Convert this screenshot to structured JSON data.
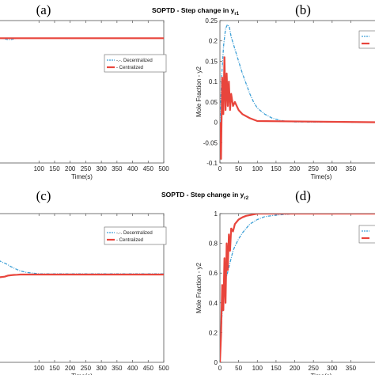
{
  "figure": {
    "title_top": "SOPTD - Step change in y",
    "title_top_sub": "r1",
    "title_bottom": "SOPTD - Step change in y",
    "title_bottom_sub": "r2",
    "letters": [
      "(a)",
      "(b)",
      "(c)",
      "(d)"
    ]
  },
  "colors": {
    "decentralized": "#3d9fd6",
    "centralized": "#e8453c"
  },
  "chart_data": [
    {
      "id": "a",
      "type": "line",
      "xlabel": "Time(s)",
      "ylabel": "",
      "xlim": [
        -30,
        500
      ],
      "ylim": [
        0,
        1.05
      ],
      "grid": false,
      "legend": "top-right",
      "xticks": [
        100,
        150,
        200,
        250,
        300,
        350,
        400,
        450,
        500
      ],
      "xtick_labels": [
        "100",
        "150",
        "200",
        "250",
        "300",
        "350",
        "400",
        "450",
        "500"
      ],
      "yticks": [],
      "ytick_labels": [],
      "series": [
        {
          "name": "-.-. Decentralized",
          "x": [
            -30,
            -10,
            0,
            10,
            20,
            30,
            40,
            60,
            80,
            500
          ],
          "y": [
            0.92,
            0.915,
            0.91,
            0.91,
            0.915,
            0.92,
            0.92,
            0.92,
            0.92,
            0.92
          ]
        },
        {
          "name": "- Centralized",
          "x": [
            -30,
            0,
            20,
            40,
            500
          ],
          "y": [
            0.92,
            0.92,
            0.92,
            0.92,
            0.92
          ]
        }
      ]
    },
    {
      "id": "b",
      "type": "line",
      "xlabel": "Time(s)",
      "ylabel": "Mole Fraction - y2",
      "xlim": [
        0,
        440
      ],
      "ylim": [
        -0.1,
        0.25
      ],
      "grid": false,
      "legend": "top-right",
      "xticks": [
        0,
        50,
        100,
        150,
        200,
        250,
        300,
        350
      ],
      "xtick_labels": [
        "0",
        "50",
        "100",
        "150",
        "200",
        "250",
        "300",
        "350"
      ],
      "yticks": [
        -0.1,
        -0.05,
        0,
        0.05,
        0.1,
        0.15,
        0.2,
        0.25
      ],
      "ytick_labels": [
        "-0.1",
        "-0.05",
        "0",
        "0.05",
        "0.1",
        "0.15",
        "0.2",
        "0.25"
      ],
      "series": [
        {
          "name": "",
          "x": [
            0,
            5,
            10,
            15,
            20,
            25,
            30,
            40,
            50,
            60,
            70,
            80,
            90,
            100,
            120,
            140,
            160,
            180,
            200,
            440
          ],
          "y": [
            0,
            0.12,
            0.19,
            0.23,
            0.24,
            0.235,
            0.21,
            0.18,
            0.15,
            0.12,
            0.095,
            0.07,
            0.05,
            0.035,
            0.02,
            0.01,
            0.005,
            0.002,
            0.001,
            0
          ]
        },
        {
          "name": "",
          "x": [
            0,
            3,
            6,
            9,
            12,
            15,
            18,
            21,
            24,
            27,
            30,
            35,
            40,
            50,
            60,
            80,
            100,
            440
          ],
          "y": [
            0,
            -0.09,
            0.11,
            0.02,
            0.16,
            0.03,
            0.12,
            0.04,
            0.1,
            0.03,
            0.07,
            0.04,
            0.05,
            0.03,
            0.02,
            0.01,
            0.003,
            0
          ]
        }
      ]
    },
    {
      "id": "c",
      "type": "line",
      "xlabel": "Time(s)",
      "ylabel": "",
      "xlim": [
        -30,
        500
      ],
      "ylim": [
        0,
        1.05
      ],
      "grid": false,
      "legend": "top-right",
      "xticks": [
        100,
        150,
        200,
        250,
        300,
        350,
        400,
        450,
        500
      ],
      "xtick_labels": [
        "100",
        "150",
        "200",
        "250",
        "300",
        "350",
        "400",
        "450",
        "500"
      ],
      "yticks": [],
      "ytick_labels": [],
      "series": [
        {
          "name": "-.-. Decentralized",
          "x": [
            -30,
            -10,
            0,
            10,
            20,
            30,
            40,
            60,
            80,
            100,
            120,
            500
          ],
          "y": [
            0.72,
            0.7,
            0.69,
            0.675,
            0.665,
            0.655,
            0.645,
            0.635,
            0.63,
            0.625,
            0.625,
            0.625
          ]
        },
        {
          "name": "- Centralized",
          "x": [
            -30,
            -10,
            0,
            10,
            20,
            30,
            40,
            60,
            500
          ],
          "y": [
            0.6,
            0.605,
            0.612,
            0.615,
            0.617,
            0.618,
            0.62,
            0.62,
            0.62
          ]
        }
      ]
    },
    {
      "id": "d",
      "type": "line",
      "xlabel": "Time(s)",
      "ylabel": "Mole Fraction - y2",
      "xlim": [
        0,
        440
      ],
      "ylim": [
        0,
        1
      ],
      "grid": false,
      "legend": "top-right",
      "xticks": [
        0,
        50,
        100,
        150,
        200,
        250,
        300,
        350
      ],
      "xtick_labels": [
        "0",
        "50",
        "100",
        "150",
        "200",
        "250",
        "300",
        "350"
      ],
      "yticks": [
        0,
        0.2,
        0.4,
        0.6,
        0.8,
        1
      ],
      "ytick_labels": [
        "0",
        "0.2",
        "0.4",
        "0.6",
        "0.8",
        "1"
      ],
      "series": [
        {
          "name": "",
          "x": [
            0,
            5,
            10,
            15,
            20,
            25,
            30,
            35,
            40,
            50,
            60,
            70,
            80,
            100,
            120,
            150,
            200,
            440
          ],
          "y": [
            0,
            0.3,
            0.5,
            0.55,
            0.6,
            0.65,
            0.7,
            0.75,
            0.78,
            0.83,
            0.87,
            0.9,
            0.93,
            0.96,
            0.98,
            0.99,
            1.0,
            1.0
          ]
        },
        {
          "name": "",
          "x": [
            0,
            3,
            6,
            9,
            12,
            15,
            18,
            21,
            24,
            27,
            30,
            35,
            40,
            50,
            60,
            70,
            80,
            100,
            440
          ],
          "y": [
            0,
            0.18,
            0.52,
            0.35,
            0.7,
            0.4,
            0.8,
            0.62,
            0.86,
            0.75,
            0.9,
            0.88,
            0.93,
            0.96,
            0.975,
            0.985,
            0.99,
            1.0,
            1.0
          ]
        }
      ]
    }
  ]
}
